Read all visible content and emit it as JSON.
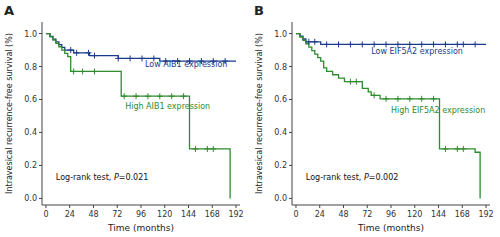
{
  "chart_data": [
    {
      "type": "step",
      "title": "A",
      "xlabel": "Time (months)",
      "ylabel": "Intravesical recurrence-free survival (%)",
      "annotations": [
        "Log-rank test, P=0.021"
      ],
      "xlim": [
        -4,
        196
      ],
      "ylim": [
        -0.04,
        1.07
      ],
      "xticks": [
        0,
        24,
        48,
        72,
        96,
        120,
        144,
        168,
        192
      ],
      "yticks": [
        {
          "value": 0.0,
          "label": "0.0"
        },
        0.2,
        0.4,
        0.6,
        0.8,
        {
          "value": 1.0,
          "label": "1.0"
        }
      ],
      "grid": false,
      "series": [
        {
          "name": "Low AIB1 expression",
          "color": "#1a3a8c",
          "x": [
            0,
            4,
            7,
            10,
            13,
            16,
            19,
            22,
            28,
            44,
            73,
            115,
            192
          ],
          "values": [
            1.0,
            0.983,
            0.966,
            0.95,
            0.933,
            0.916,
            0.9,
            0.9,
            0.883,
            0.866,
            0.849,
            0.833,
            0.833
          ]
        },
        {
          "name": "High AIB1 expression",
          "color": "#2e8b2e",
          "x": [
            0,
            4,
            7,
            10,
            13,
            16,
            19,
            22,
            25,
            73,
            76,
            121,
            145,
            183,
            186
          ],
          "values": [
            1.0,
            0.98,
            0.96,
            0.94,
            0.92,
            0.9,
            0.88,
            0.86,
            0.77,
            0.77,
            0.62,
            0.62,
            0.3,
            0.3,
            0.0
          ]
        },
        {
          "type": "scatter",
          "marker": "plus",
          "color": "#1a3a8c",
          "x": [
            25,
            31,
            43,
            49,
            73,
            85,
            97,
            109,
            121,
            133,
            145,
            157,
            169,
            181
          ],
          "values": [
            0.9,
            0.883,
            0.883,
            0.866,
            0.849,
            0.849,
            0.849,
            0.849,
            0.833,
            0.833,
            0.833,
            0.833,
            0.833,
            0.833
          ]
        },
        {
          "type": "scatter",
          "marker": "plus",
          "color": "#2e8b2e",
          "x": [
            28,
            37,
            49,
            79,
            91,
            103,
            115,
            127,
            139,
            151,
            163,
            169
          ],
          "values": [
            0.77,
            0.77,
            0.77,
            0.62,
            0.62,
            0.62,
            0.62,
            0.62,
            0.62,
            0.3,
            0.3,
            0.3
          ]
        }
      ]
    },
    {
      "type": "step",
      "title": "B",
      "xlabel": "Time (months)",
      "ylabel": "Intravesical recurrence-free survival (%)",
      "annotations": [
        "Log-rank test, P=0.002"
      ],
      "xlim": [
        -4,
        196
      ],
      "ylim": [
        -0.04,
        1.07
      ],
      "xticks": [
        0,
        24,
        48,
        72,
        96,
        120,
        144,
        168,
        192
      ],
      "yticks": [
        {
          "value": 0.0,
          "label": "0.0"
        },
        0.2,
        0.4,
        0.6,
        0.8,
        {
          "value": 1.0,
          "label": "1.0"
        }
      ],
      "grid": false,
      "series": [
        {
          "name": "Low EIF5A2 expression",
          "color": "#1a3a8c",
          "x": [
            0,
            4,
            7,
            10,
            25,
            192
          ],
          "values": [
            1.0,
            0.984,
            0.967,
            0.95,
            0.934,
            0.934
          ]
        },
        {
          "name": "High EIF5A2 expression",
          "color": "#2e8b2e",
          "x": [
            0,
            4,
            7,
            10,
            13,
            16,
            19,
            22,
            25,
            28,
            31,
            37,
            43,
            49,
            67,
            73,
            76,
            85,
            121,
            145,
            175,
            181,
            186
          ],
          "values": [
            1.0,
            0.979,
            0.958,
            0.938,
            0.917,
            0.896,
            0.875,
            0.854,
            0.833,
            0.792,
            0.771,
            0.75,
            0.729,
            0.708,
            0.667,
            0.646,
            0.625,
            0.604,
            0.604,
            0.3,
            0.3,
            0.28,
            0.0
          ]
        },
        {
          "type": "scatter",
          "marker": "plus",
          "color": "#1a3a8c",
          "x": [
            13,
            19,
            31,
            43,
            55,
            67,
            79,
            91,
            103,
            115,
            127,
            139,
            151,
            163,
            169,
            181
          ],
          "values": [
            0.95,
            0.95,
            0.934,
            0.934,
            0.934,
            0.934,
            0.934,
            0.934,
            0.934,
            0.934,
            0.934,
            0.934,
            0.934,
            0.934,
            0.934,
            0.934
          ]
        },
        {
          "type": "scatter",
          "marker": "plus",
          "color": "#2e8b2e",
          "x": [
            55,
            61,
            79,
            91,
            103,
            115,
            127,
            139,
            151,
            163,
            169
          ],
          "values": [
            0.708,
            0.708,
            0.625,
            0.604,
            0.604,
            0.604,
            0.604,
            0.604,
            0.3,
            0.3,
            0.3
          ]
        }
      ]
    }
  ]
}
